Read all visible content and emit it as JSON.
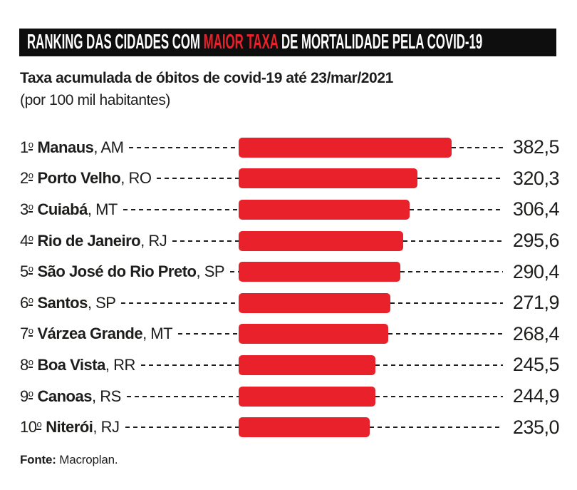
{
  "header": {
    "title_prefix": "RANKING DAS CIDADES COM ",
    "title_highlight": "MAIOR TAXA",
    "title_suffix": " DE MORTALIDADE PELA COVID-19",
    "highlight_color": "#e8212b",
    "bar_background": "#0e0e0e"
  },
  "subtitle": {
    "line1": "Taxa acumulada de óbitos de covid-19 até 23/mar/2021",
    "line2": "(por 100 mil habitantes)"
  },
  "strings": {
    "ordinal": "o",
    "comma": ", "
  },
  "footer": {
    "source_label": "Fonte:",
    "source_value": " Macroplan."
  },
  "chart_data": {
    "type": "bar",
    "orientation": "horizontal",
    "title": "RANKING DAS CIDADES COM MAIOR TAXA DE MORTALIDADE PELA COVID-19",
    "subtitle": "Taxa acumulada de óbitos de covid-19 até 23/mar/2021 (por 100 mil habitantes)",
    "ranks": [
      "1",
      "2",
      "3",
      "4",
      "5",
      "6",
      "7",
      "8",
      "9",
      "10"
    ],
    "cities": [
      "Manaus",
      "Porto Velho",
      "Cuiabá",
      "Rio de Janeiro",
      "São José do Rio Preto",
      "Santos",
      "Várzea Grande",
      "Boa Vista",
      "Canoas",
      "Niterói"
    ],
    "states": [
      "AM",
      "RO",
      "MT",
      "RJ",
      "SP",
      "SP",
      "MT",
      "RR",
      "RS",
      "RJ"
    ],
    "values": [
      382.5,
      320.3,
      306.4,
      295.6,
      290.4,
      271.9,
      268.4,
      245.5,
      244.9,
      235.0
    ],
    "value_labels": [
      "382,5",
      "320,3",
      "306,4",
      "295,6",
      "290,4",
      "271,9",
      "268,4",
      "245,5",
      "244,9",
      "235,0"
    ],
    "xlim": [
      0,
      400
    ],
    "axis": "none",
    "grid": false,
    "legend": false,
    "bar_color": "#e8212b",
    "source": "Fonte: Macroplan."
  }
}
